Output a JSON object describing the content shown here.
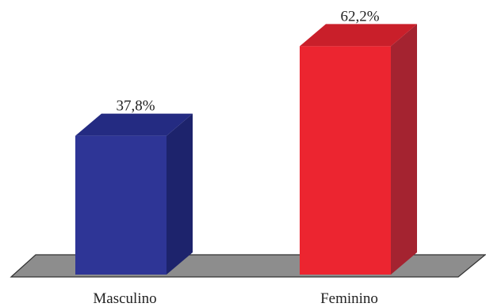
{
  "chart_data": {
    "type": "bar",
    "categories": [
      "Masculino",
      "Feminino"
    ],
    "values": [
      37.8,
      62.2
    ],
    "value_labels": [
      "37,8%",
      "62,2%"
    ],
    "title": "",
    "xlabel": "",
    "ylabel": "",
    "ylim": [
      0,
      65
    ],
    "grid": false,
    "legend": "none",
    "style": "3d-bar",
    "colors": {
      "Masculino": {
        "front": "#2e3596",
        "top": "#242b82",
        "side": "#1d236c"
      },
      "Feminino": {
        "front": "#ec2530",
        "top": "#c91f2a",
        "side": "#a42330"
      },
      "floor": "#8d8d8d",
      "floor_edge": "#333333"
    }
  }
}
